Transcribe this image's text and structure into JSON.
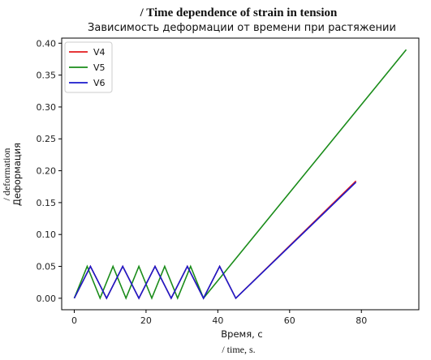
{
  "chart_data": {
    "type": "line",
    "title_en": "/ Time dependence of strain in tension",
    "title": "Зависимость деформации от времени при растяжении",
    "xlabel": "Время, с",
    "xlabel_en": "/ time, s.",
    "ylabel": "Деформация",
    "ylabel_en": "/ deformation",
    "xlim": [
      -3.5,
      96
    ],
    "ylim": [
      -0.018,
      0.408
    ],
    "xticks": [
      0,
      20,
      40,
      60,
      80
    ],
    "yticks": [
      0.0,
      0.05,
      0.1,
      0.15,
      0.2,
      0.25,
      0.3,
      0.35,
      0.4
    ],
    "xtick_labels": [
      "0",
      "20",
      "40",
      "60",
      "80"
    ],
    "ytick_labels": [
      "0.00",
      "0.05",
      "0.10",
      "0.15",
      "0.20",
      "0.25",
      "0.30",
      "0.35",
      "0.40"
    ],
    "grid": false,
    "legend": "top-left",
    "series": [
      {
        "name": "V4",
        "color": "#e31a1c",
        "x": [
          0,
          4.5,
          9,
          13.5,
          18,
          22.5,
          27,
          31.5,
          36,
          40.5,
          45,
          78.5
        ],
        "y": [
          0,
          0.05,
          0,
          0.05,
          0,
          0.05,
          0,
          0.05,
          0,
          0.05,
          0,
          0.184
        ]
      },
      {
        "name": "V5",
        "color": "#1a8c1a",
        "x": [
          0,
          3.6,
          7.2,
          10.8,
          14.4,
          18,
          21.6,
          25.2,
          28.8,
          32.4,
          36,
          92.5
        ],
        "y": [
          0,
          0.05,
          0,
          0.05,
          0,
          0.05,
          0,
          0.05,
          0,
          0.05,
          0,
          0.39
        ]
      },
      {
        "name": "V6",
        "color": "#1a1acc",
        "x": [
          0,
          4.5,
          9,
          13.5,
          18,
          22.5,
          27,
          31.5,
          36,
          40.5,
          45,
          78.5
        ],
        "y": [
          0,
          0.05,
          0,
          0.05,
          0,
          0.05,
          0,
          0.05,
          0,
          0.05,
          0,
          0.182
        ]
      }
    ]
  }
}
